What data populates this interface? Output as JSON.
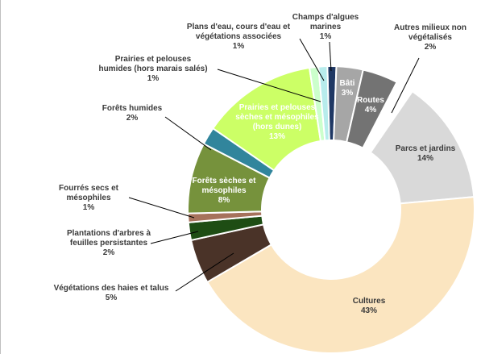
{
  "chart_data": {
    "type": "pie",
    "donut": true,
    "title": "",
    "legend": "none",
    "slices": [
      {
        "label": "Champs d'algues marines",
        "value_label": "1%",
        "value": 1,
        "color": "#1f3864"
      },
      {
        "label": "Bâti",
        "value_label": "3%",
        "value": 3,
        "color": "#a6a6a6"
      },
      {
        "label": "Routes",
        "value_label": "4%",
        "value": 4,
        "color": "#737373"
      },
      {
        "label": "Autres milieux non végétalisés",
        "value_label": "2%",
        "value": 2,
        "color": "#ffffff"
      },
      {
        "label": "Parcs et jardins",
        "value_label": "14%",
        "value": 14,
        "color": "#d9d9d9"
      },
      {
        "label": "Cultures",
        "value_label": "43%",
        "value": 43,
        "color": "#fbe5c0"
      },
      {
        "label": "Végétations des haies et talus",
        "value_label": "5%",
        "value": 5,
        "color": "#4a3328"
      },
      {
        "label": "Plantations d'arbres à feuilles persistantes",
        "value_label": "2%",
        "value": 2,
        "color": "#1e4d14"
      },
      {
        "label": "Fourrés secs et mésophiles",
        "value_label": "1%",
        "value": 1,
        "color": "#a6725c"
      },
      {
        "label": "Forêts sèches et mésophiles",
        "value_label": "8%",
        "value": 8,
        "color": "#76923c"
      },
      {
        "label": "Forêts humides",
        "value_label": "2%",
        "value": 2,
        "color": "#31859c"
      },
      {
        "label": "Prairies et pelouses sèches et mésophiles (hors dunes)",
        "value_label": "13%",
        "value": 13,
        "color": "#ccff66"
      },
      {
        "label": "Prairies et pelouses humides (hors marais salés)",
        "value_label": "1%",
        "value": 1,
        "color": "#ccffcc"
      },
      {
        "label": "Plans d'eau, cours d'eau et végétations associées",
        "value_label": "1%",
        "value": 1,
        "color": "#b7ecec"
      }
    ]
  }
}
